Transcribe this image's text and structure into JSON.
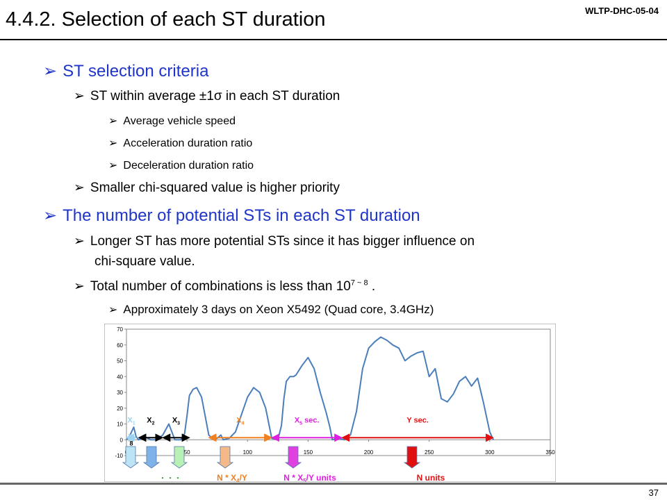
{
  "header": {
    "title": "4.4.2. Selection of each ST duration",
    "doc_id": "WLTP-DHC-05-04"
  },
  "bullets": {
    "b1": "ST selection criteria",
    "b1_1": "ST within average ±1σ in each ST duration",
    "b1_1_1": "Average vehicle speed",
    "b1_1_2": "Acceleration duration ratio",
    "b1_1_3": "Deceleration duration ratio",
    "b1_2": "Smaller chi-squared value is higher priority",
    "b2": "The number of potential STs in each ST duration",
    "b2_1_line1": "Longer ST has more potential STs since it has bigger influence on",
    "b2_1_line2": "chi-square value.",
    "b2_2_pre": "Total number of combinations is less than 10",
    "b2_2_sup": "7 ~ 8",
    "b2_2_post": ".",
    "b2_2_1": "Approximately 3 days on Xeon X5492 (Quad core, 3.4GHz)"
  },
  "chart_data": {
    "type": "line",
    "x": [
      0,
      3,
      6,
      8,
      10,
      15,
      20,
      25,
      30,
      35,
      40,
      45,
      48,
      50,
      52,
      55,
      58,
      62,
      68,
      72,
      75,
      78,
      80,
      85,
      90,
      95,
      100,
      105,
      110,
      115,
      120,
      125,
      128,
      130,
      132,
      135,
      138,
      140,
      145,
      150,
      155,
      160,
      165,
      168,
      170,
      175,
      180,
      185,
      190,
      195,
      200,
      205,
      210,
      215,
      220,
      225,
      230,
      235,
      240,
      245,
      250,
      255,
      260,
      265,
      270,
      275,
      280,
      285,
      290,
      295,
      300,
      303
    ],
    "y": [
      0,
      3,
      8,
      2,
      0,
      2,
      0,
      0,
      3,
      10,
      0,
      0,
      4,
      15,
      28,
      32,
      33,
      27,
      3,
      0,
      1,
      3,
      0,
      1,
      5,
      16,
      27,
      33,
      30,
      20,
      1,
      0,
      9,
      26,
      37,
      40,
      40,
      41,
      47,
      52,
      45,
      30,
      17,
      8,
      0,
      1,
      0,
      3,
      18,
      45,
      58,
      62,
      65,
      63,
      60,
      58,
      50,
      53,
      55,
      56,
      40,
      45,
      26,
      24,
      29,
      37,
      40,
      34,
      39,
      23,
      5,
      0
    ],
    "ylim": [
      -10,
      70
    ],
    "xlim": [
      0,
      350
    ],
    "yticks": [
      -10,
      0,
      10,
      20,
      30,
      40,
      50,
      60,
      70
    ],
    "xticks": [
      0,
      50,
      100,
      150,
      200,
      250,
      300,
      350
    ],
    "line_color": "#4a7ebb",
    "segments": [
      {
        "label_main": "X",
        "label_sub": "1",
        "label_post": "",
        "x0": 0,
        "x1": 8,
        "color": "#9bd3f0"
      },
      {
        "label_main": "X",
        "label_sub": "2",
        "label_post": "",
        "x0": 10,
        "x1": 30,
        "color": "#000000"
      },
      {
        "label_main": "X",
        "label_sub": "3",
        "label_post": "",
        "x0": 30,
        "x1": 52,
        "color": "#000000"
      },
      {
        "label_main": "X",
        "label_sub": "4",
        "label_post": "",
        "x0": 68,
        "x1": 120,
        "color": "#f08020"
      },
      {
        "label_main": "X",
        "label_sub": "5",
        "label_post": " sec.",
        "x0": 120,
        "x1": 178,
        "color": "#e020e0"
      },
      {
        "label_main": "Y sec.",
        "label_sub": "",
        "label_post": "",
        "x0": 178,
        "x1": 303,
        "color": "#e01010"
      }
    ],
    "small_label": "8",
    "bottom_labels": {
      "dots": "・・・",
      "x4_pre": "N * X",
      "x4_sub": "4",
      "x4_post": "/Y",
      "x5_pre": "N * X",
      "x5_sub": "5",
      "x5_post": "/Y units",
      "n_units": "N  units"
    },
    "arrow_colors": {
      "x1": "#bde4f5",
      "x2": "#7fb2e8",
      "x3": "#b9f0b5",
      "x4": "#f5b889",
      "x5": "#e040e0",
      "y": "#e01010"
    }
  }
}
